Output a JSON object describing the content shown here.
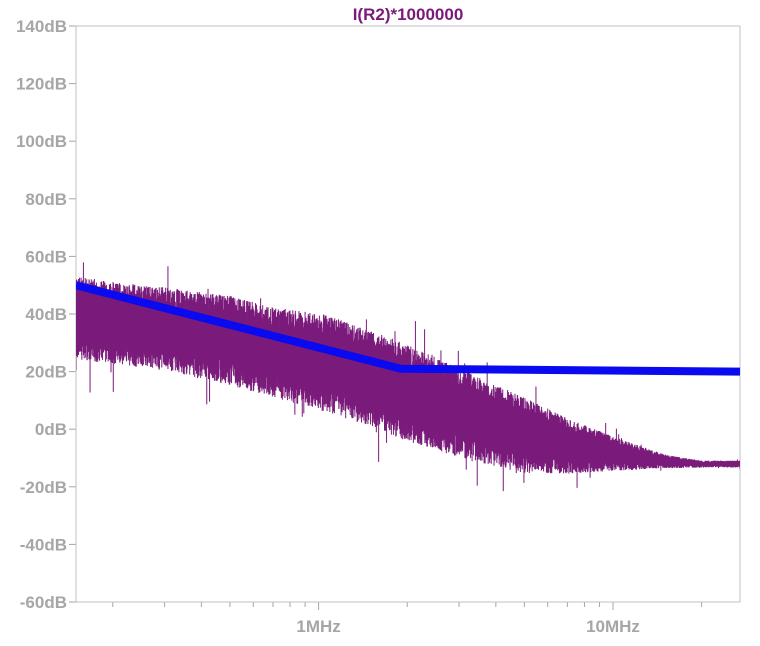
{
  "chart_data": {
    "type": "line",
    "title": "I(R2)*1000000",
    "xlabel": "",
    "ylabel": "",
    "x_scale": "log",
    "xlim": [
      150000,
      27000000
    ],
    "ylim": [
      -60,
      140
    ],
    "y_ticks": [
      {
        "value": 140,
        "label": "140dB"
      },
      {
        "value": 120,
        "label": "120dB"
      },
      {
        "value": 100,
        "label": "100dB"
      },
      {
        "value": 80,
        "label": "80dB"
      },
      {
        "value": 60,
        "label": "60dB"
      },
      {
        "value": 40,
        "label": "40dB"
      },
      {
        "value": 20,
        "label": "20dB"
      },
      {
        "value": 0,
        "label": "0dB"
      },
      {
        "value": -20,
        "label": "-20dB"
      },
      {
        "value": -40,
        "label": "-40dB"
      },
      {
        "value": -60,
        "label": "-60dB"
      }
    ],
    "x_ticks": [
      {
        "value": 1000000,
        "label": "1MHz"
      },
      {
        "value": 10000000,
        "label": "10MHz"
      }
    ],
    "grid": false,
    "series": [
      {
        "color": "#7a1a7a",
        "style": "noisy spectrum",
        "x": [
          150000,
          200000,
          300000,
          500000,
          700000,
          1000000,
          1500000,
          2000000,
          3000000,
          5000000,
          7000000,
          10000000,
          15000000,
          20000000,
          27000000
        ],
        "y": [
          40,
          38,
          36,
          32,
          28,
          25,
          19,
          14,
          7,
          -1,
          -5,
          -8,
          -11,
          -12,
          -12
        ],
        "spread": [
          12,
          12,
          12,
          13,
          13,
          14,
          14,
          14,
          13,
          11,
          8,
          5,
          2,
          1,
          1
        ]
      },
      {
        "color": "#0a0af0",
        "style": "limit line",
        "x": [
          150000,
          1900000,
          27000000
        ],
        "y": [
          50,
          21,
          20
        ]
      }
    ]
  }
}
